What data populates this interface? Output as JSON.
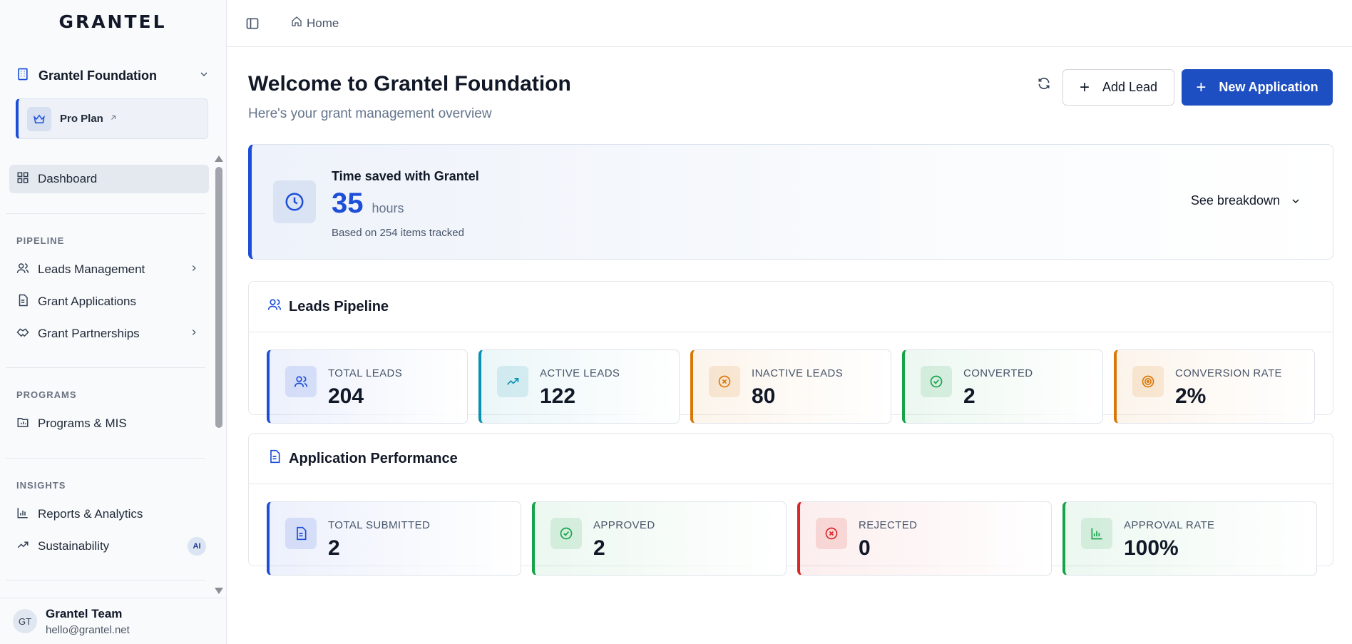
{
  "app": {
    "logo": "GRANTEL"
  },
  "sidebar": {
    "org_name": "Grantel Foundation",
    "plan_label": "Pro Plan",
    "items": [
      {
        "label": "Dashboard"
      },
      {
        "label": "Leads Management"
      },
      {
        "label": "Grant Applications"
      },
      {
        "label": "Grant Partnerships"
      },
      {
        "label": "Programs & MIS"
      },
      {
        "label": "Reports & Analytics"
      },
      {
        "label": "Sustainability",
        "badge": "AI"
      }
    ],
    "sections": {
      "pipeline": "PIPELINE",
      "programs": "PROGRAMS",
      "insights": "INSIGHTS"
    },
    "user": {
      "initials": "GT",
      "name": "Grantel Team",
      "email": "hello@grantel.net"
    }
  },
  "topbar": {
    "breadcrumb": "Home"
  },
  "header": {
    "title": "Welcome to Grantel Foundation",
    "subtitle": "Here's your grant management overview",
    "add_lead": "Add Lead",
    "new_application": "New Application"
  },
  "time_saved": {
    "title": "Time saved with Grantel",
    "value": "35",
    "unit": "hours",
    "note": "Based on 254 items tracked",
    "breakdown": "See breakdown"
  },
  "leads_pipeline": {
    "title": "Leads Pipeline",
    "stats": [
      {
        "label": "TOTAL LEADS",
        "value": "204",
        "icon": "users-icon",
        "color": "#1d4ed8"
      },
      {
        "label": "ACTIVE LEADS",
        "value": "122",
        "icon": "trending-up-icon",
        "color": "#0891b2"
      },
      {
        "label": "INACTIVE LEADS",
        "value": "80",
        "icon": "x-circle-icon",
        "color": "#d97706"
      },
      {
        "label": "CONVERTED",
        "value": "2",
        "icon": "check-circle-icon",
        "color": "#16a34a"
      },
      {
        "label": "CONVERSION RATE",
        "value": "2%",
        "icon": "target-icon",
        "color": "#d97706"
      }
    ]
  },
  "application_performance": {
    "title": "Application Performance",
    "stats": [
      {
        "label": "TOTAL SUBMITTED",
        "value": "2",
        "icon": "file-icon",
        "color": "#1d4ed8"
      },
      {
        "label": "APPROVED",
        "value": "2",
        "icon": "check-circle-icon",
        "color": "#16a34a"
      },
      {
        "label": "REJECTED",
        "value": "0",
        "icon": "x-circle-icon",
        "color": "#dc2626"
      },
      {
        "label": "APPROVAL RATE",
        "value": "100%",
        "icon": "bar-chart-icon",
        "color": "#16a34a"
      }
    ]
  }
}
